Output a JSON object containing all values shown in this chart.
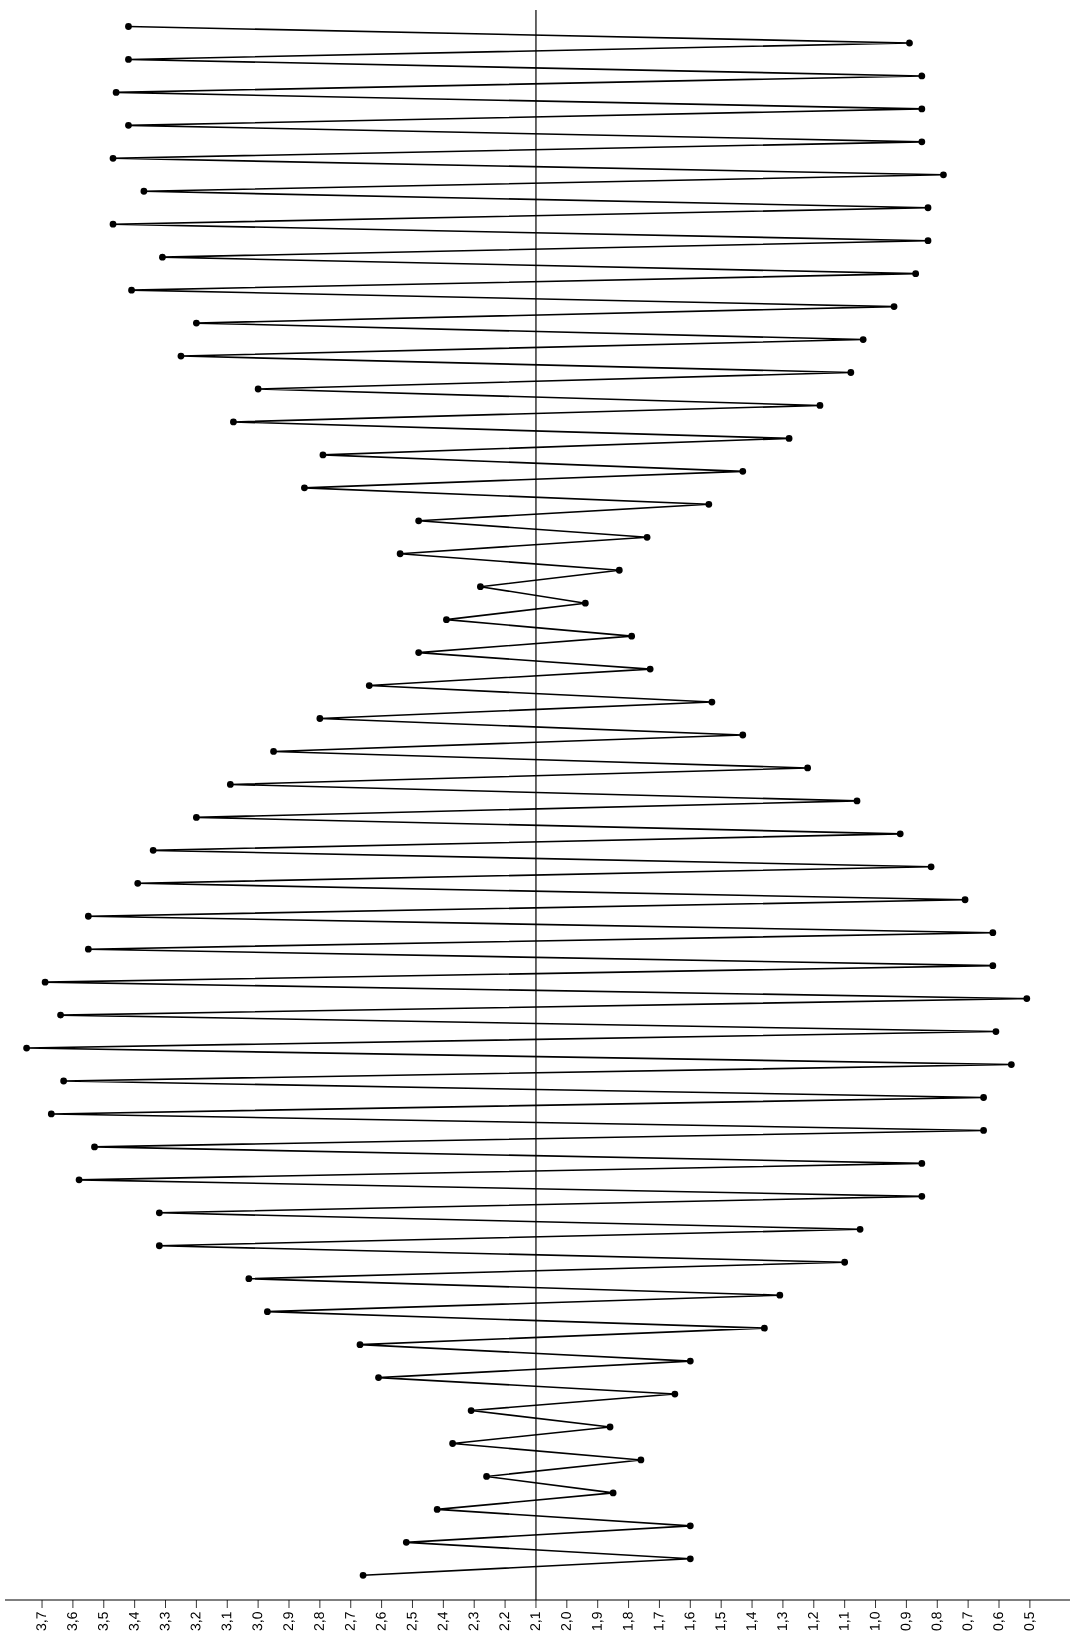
{
  "chart_data": {
    "type": "line",
    "orientation": "horizontal",
    "color": "#000000",
    "marker": "circle",
    "line_style": "solid",
    "categories": [
      null,
      null,
      null,
      null,
      null,
      null,
      null,
      null,
      null,
      null,
      null,
      null,
      null,
      null,
      null,
      null,
      null,
      null,
      null,
      null,
      null,
      null,
      null,
      null,
      null,
      null,
      null,
      null,
      null,
      null,
      null,
      null,
      null,
      null,
      null,
      null,
      null,
      null,
      null,
      null,
      null,
      null,
      null,
      null,
      null,
      null,
      null,
      null,
      null,
      null,
      null,
      null,
      null,
      null,
      null,
      null,
      null,
      null,
      null,
      null,
      null,
      null,
      null,
      null,
      null,
      null,
      null,
      null,
      null,
      null,
      null,
      null,
      null,
      null,
      null,
      null,
      null,
      null,
      null,
      null,
      null,
      null,
      null,
      null,
      null,
      null,
      null,
      null,
      null,
      null,
      null,
      null,
      null,
      null,
      null
    ],
    "values": [
      3.42,
      0.89,
      3.42,
      0.85,
      3.46,
      0.85,
      3.42,
      0.85,
      3.47,
      0.78,
      3.37,
      0.83,
      3.47,
      0.83,
      3.31,
      0.87,
      3.41,
      0.94,
      3.2,
      1.04,
      3.25,
      1.08,
      3.0,
      1.18,
      3.08,
      1.28,
      2.79,
      1.43,
      2.85,
      1.54,
      2.48,
      1.74,
      2.54,
      1.83,
      2.28,
      1.94,
      2.39,
      1.79,
      2.48,
      1.73,
      2.64,
      1.53,
      2.8,
      1.43,
      2.95,
      1.22,
      3.09,
      1.06,
      3.2,
      0.92,
      3.34,
      0.82,
      3.39,
      0.71,
      3.55,
      0.62,
      3.55,
      0.62,
      3.69,
      0.51,
      3.64,
      0.61,
      3.75,
      0.56,
      3.63,
      0.65,
      3.67,
      0.65,
      3.53,
      0.85,
      3.58,
      0.85,
      3.32,
      1.05,
      3.32,
      1.1,
      3.03,
      1.31,
      2.97,
      1.36,
      2.67,
      1.6,
      2.61,
      1.65,
      2.31,
      1.86,
      2.37,
      1.76,
      2.26,
      1.85,
      2.42,
      1.6,
      2.52,
      1.6,
      2.66
    ],
    "xlim": [
      3.82,
      0.37
    ],
    "xticks": [
      {
        "value": 3.7,
        "label": "3,7"
      },
      {
        "value": 3.6,
        "label": "3,6"
      },
      {
        "value": 3.5,
        "label": "3,5"
      },
      {
        "value": 3.4,
        "label": "3,4"
      },
      {
        "value": 3.3,
        "label": "3,3"
      },
      {
        "value": 3.2,
        "label": "3,2"
      },
      {
        "value": 3.1,
        "label": "3,1"
      },
      {
        "value": 3.0,
        "label": "3,0"
      },
      {
        "value": 2.9,
        "label": "2,9"
      },
      {
        "value": 2.8,
        "label": "2,8"
      },
      {
        "value": 2.7,
        "label": "2,7"
      },
      {
        "value": 2.6,
        "label": "2,6"
      },
      {
        "value": 2.5,
        "label": "2,5"
      },
      {
        "value": 2.4,
        "label": "2,4"
      },
      {
        "value": 2.3,
        "label": "2,3"
      },
      {
        "value": 2.2,
        "label": "2,2"
      },
      {
        "value": 2.1,
        "label": "2,1"
      },
      {
        "value": 2.0,
        "label": "2,0"
      },
      {
        "value": 1.9,
        "label": "1,9"
      },
      {
        "value": 1.8,
        "label": "1,8"
      },
      {
        "value": 1.7,
        "label": "1,7"
      },
      {
        "value": 1.6,
        "label": "1,6"
      },
      {
        "value": 1.5,
        "label": "1,5"
      },
      {
        "value": 1.4,
        "label": "1,4"
      },
      {
        "value": 1.3,
        "label": "1,3"
      },
      {
        "value": 1.2,
        "label": "1,2"
      },
      {
        "value": 1.1,
        "label": "1,1"
      },
      {
        "value": 1.0,
        "label": "1,0"
      },
      {
        "value": 0.9,
        "label": "0,9"
      },
      {
        "value": 0.8,
        "label": "0,8"
      },
      {
        "value": 0.7,
        "label": "0,7"
      },
      {
        "value": 0.6,
        "label": "0,6"
      },
      {
        "value": 0.5,
        "label": "0,5"
      }
    ],
    "ref_lines": [
      {
        "axis": "x",
        "value": 2.1
      }
    ]
  }
}
